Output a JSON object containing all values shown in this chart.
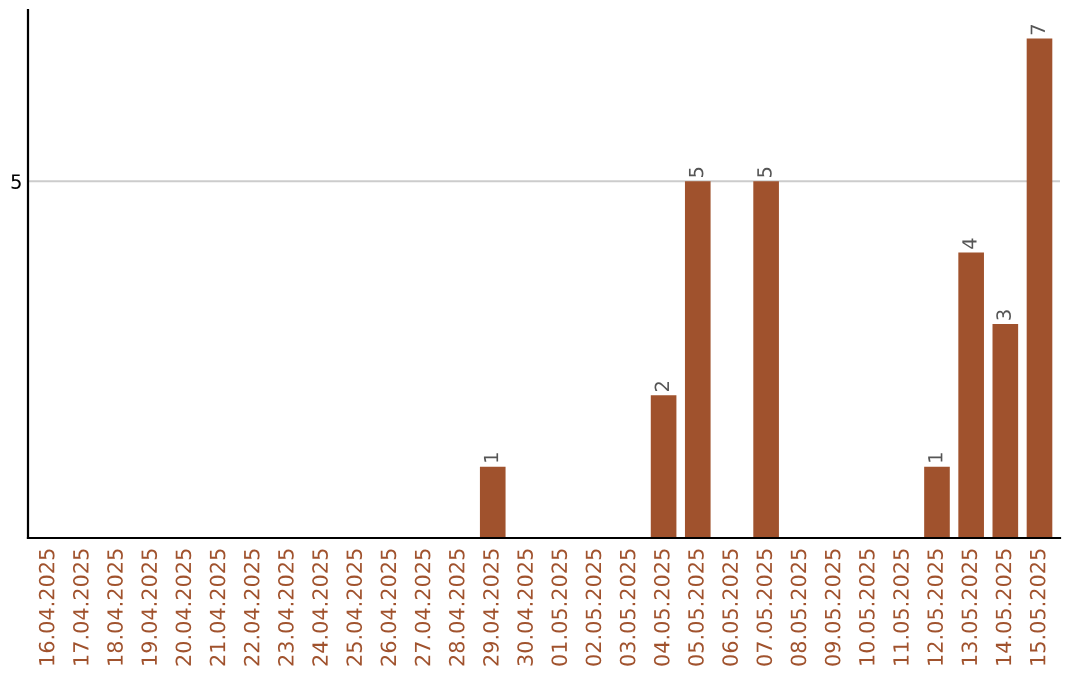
{
  "chart_data": {
    "type": "bar",
    "categories": [
      "16.04.2025",
      "17.04.2025",
      "18.04.2025",
      "19.04.2025",
      "20.04.2025",
      "21.04.2025",
      "22.04.2025",
      "23.04.2025",
      "24.04.2025",
      "25.04.2025",
      "26.04.2025",
      "27.04.2025",
      "28.04.2025",
      "29.04.2025",
      "30.04.2025",
      "01.05.2025",
      "02.05.2025",
      "03.05.2025",
      "04.05.2025",
      "05.05.2025",
      "06.05.2025",
      "07.05.2025",
      "08.05.2025",
      "09.05.2025",
      "10.05.2025",
      "11.05.2025",
      "12.05.2025",
      "13.05.2025",
      "14.05.2025",
      "15.05.2025"
    ],
    "values": [
      null,
      null,
      null,
      null,
      null,
      null,
      null,
      null,
      null,
      null,
      null,
      null,
      null,
      1,
      null,
      null,
      null,
      null,
      2,
      5,
      null,
      5,
      null,
      null,
      null,
      null,
      1,
      4,
      3,
      7
    ],
    "data_labels": true,
    "color": "#a0522d",
    "ylim": [
      0,
      7.4
    ],
    "yticks": [
      5
    ],
    "grid": "y"
  }
}
